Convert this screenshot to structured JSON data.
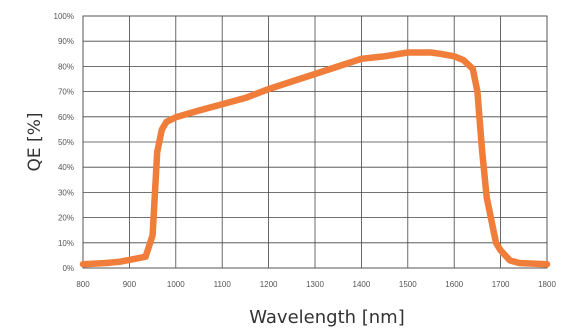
{
  "chart_data": {
    "type": "line",
    "title": "",
    "xlabel": "Wavelength [nm]",
    "ylabel": "QE [%]",
    "xlim": [
      800,
      1800
    ],
    "ylim": [
      0,
      100
    ],
    "x_ticks": [
      800,
      900,
      1000,
      1100,
      1200,
      1300,
      1400,
      1500,
      1600,
      1700,
      1800
    ],
    "x_tick_labels": [
      "800",
      "900",
      "1000",
      "1100",
      "1200",
      "1300",
      "1400",
      "1500",
      "1600",
      "1700",
      "1800"
    ],
    "y_ticks": [
      0,
      10,
      20,
      30,
      40,
      50,
      60,
      70,
      80,
      90,
      100
    ],
    "y_tick_labels": [
      "0%",
      "10%",
      "20%",
      "30%",
      "40%",
      "50%",
      "60%",
      "70%",
      "80%",
      "90%",
      "100%"
    ],
    "grid": true,
    "colors": {
      "line": "#f07d3a",
      "grid": "#444444",
      "frame": "#555555"
    },
    "series": [
      {
        "x": [
          800,
          850,
          880,
          900,
          935,
          950,
          960,
          970,
          980,
          1000,
          1050,
          1100,
          1150,
          1200,
          1250,
          1300,
          1350,
          1400,
          1450,
          1500,
          1550,
          1570,
          1600,
          1620,
          1640,
          1650,
          1660,
          1670,
          1690,
          1700,
          1720,
          1740,
          1800
        ],
        "y": [
          1.5,
          2,
          2.5,
          3.2,
          4.5,
          13,
          46,
          55,
          58,
          59.8,
          62.5,
          65,
          67.5,
          71,
          74,
          77,
          80,
          83,
          84,
          85.5,
          85.5,
          85,
          84,
          82.5,
          79,
          70,
          47,
          28,
          10,
          7,
          3,
          2,
          1.5
        ]
      }
    ]
  }
}
